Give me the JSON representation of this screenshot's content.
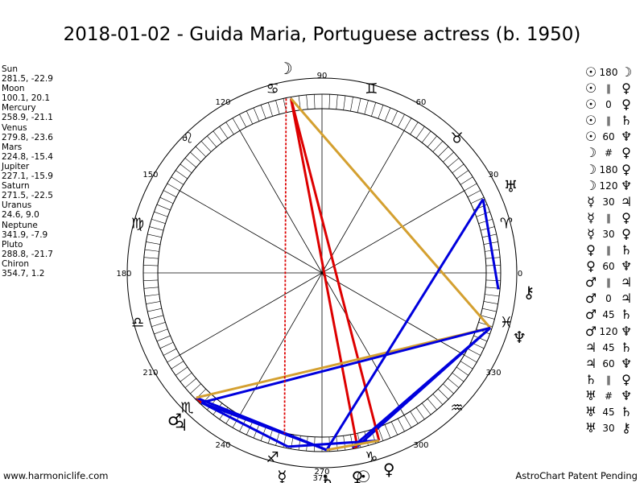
{
  "title": "2018-01-02 - Guida Maria, Portuguese actress (b. 1950)",
  "positions": [
    {
      "name": "Sun",
      "value": "281.5, -22.9"
    },
    {
      "name": "Moon",
      "value": "100.1, 20.1"
    },
    {
      "name": "Mercury",
      "value": "258.9, -21.1"
    },
    {
      "name": "Venus",
      "value": "279.8, -23.6"
    },
    {
      "name": "Mars",
      "value": "224.8, -15.4"
    },
    {
      "name": "Jupiter",
      "value": "227.1, -15.9"
    },
    {
      "name": "Saturn",
      "value": "271.5, -22.5"
    },
    {
      "name": "Uranus",
      "value": "24.6, 9.0"
    },
    {
      "name": "Neptune",
      "value": "341.9, -7.9"
    },
    {
      "name": "Pluto",
      "value": "288.8, -21.7"
    },
    {
      "name": "Chiron",
      "value": "354.7, 1.2"
    }
  ],
  "aspects": [
    {
      "p1": "☉",
      "aspect": "180",
      "p2": "☽"
    },
    {
      "p1": "☉",
      "aspect": "∥",
      "p2": "♀"
    },
    {
      "p1": "☉",
      "aspect": "0",
      "p2": "♀"
    },
    {
      "p1": "☉",
      "aspect": "∥",
      "p2": "♄"
    },
    {
      "p1": "☉",
      "aspect": "60",
      "p2": "♆"
    },
    {
      "p1": "☽",
      "aspect": "#",
      "p2": "♀"
    },
    {
      "p1": "☽",
      "aspect": "180",
      "p2": "♀"
    },
    {
      "p1": "☽",
      "aspect": "120",
      "p2": "♆"
    },
    {
      "p1": "☿",
      "aspect": "30",
      "p2": "♃"
    },
    {
      "p1": "☿",
      "aspect": "∥",
      "p2": "♀"
    },
    {
      "p1": "☿",
      "aspect": "30",
      "p2": "♀"
    },
    {
      "p1": "♀",
      "aspect": "∥",
      "p2": "♄"
    },
    {
      "p1": "♀",
      "aspect": "60",
      "p2": "♆"
    },
    {
      "p1": "♂",
      "aspect": "∥",
      "p2": "♃"
    },
    {
      "p1": "♂",
      "aspect": "0",
      "p2": "♃"
    },
    {
      "p1": "♂",
      "aspect": "45",
      "p2": "♄"
    },
    {
      "p1": "♂",
      "aspect": "120",
      "p2": "♆"
    },
    {
      "p1": "♃",
      "aspect": "45",
      "p2": "♄"
    },
    {
      "p1": "♃",
      "aspect": "60",
      "p2": "♆"
    },
    {
      "p1": "♄",
      "aspect": "∥",
      "p2": "♀"
    },
    {
      "p1": "♅",
      "aspect": "#",
      "p2": "♆"
    },
    {
      "p1": "♅",
      "aspect": "45",
      "p2": "♄"
    },
    {
      "p1": "♅",
      "aspect": "30",
      "p2": "⚷"
    }
  ],
  "wheel": {
    "degree_labels": [
      "0",
      "30",
      "60",
      "90",
      "120",
      "150",
      "180",
      "210",
      "240",
      "270",
      "300",
      "330"
    ],
    "bottom_label": "375",
    "signs": [
      "♈",
      "♉",
      "♊",
      "♋",
      "♌",
      "♍",
      "♎",
      "♏",
      "♐",
      "♑",
      "♒",
      "♓"
    ],
    "planets": [
      {
        "name": "Sun",
        "glyph": "☉",
        "lon": 281.5
      },
      {
        "name": "Moon",
        "glyph": "☽",
        "lon": 100.1
      },
      {
        "name": "Mercury",
        "glyph": "☿",
        "lon": 258.9
      },
      {
        "name": "Venus",
        "glyph": "♀",
        "lon": 279.8
      },
      {
        "name": "Mars",
        "glyph": "♂",
        "lon": 224.8
      },
      {
        "name": "Jupiter",
        "glyph": "♃",
        "lon": 227.1
      },
      {
        "name": "Saturn",
        "glyph": "♄",
        "lon": 271.5
      },
      {
        "name": "Uranus",
        "glyph": "♅",
        "lon": 24.6
      },
      {
        "name": "Neptune",
        "glyph": "♆",
        "lon": 341.9
      },
      {
        "name": "Pluto",
        "glyph": "♀",
        "lon": 288.8
      },
      {
        "name": "Chiron",
        "glyph": "⚷",
        "lon": 354.7
      }
    ],
    "aspect_lines": [
      {
        "a": "Sun",
        "b": "Moon",
        "color": "#dd0000"
      },
      {
        "a": "Sun",
        "b": "Venus",
        "color": "#dd0000"
      },
      {
        "a": "Sun",
        "b": "Neptune",
        "color": "#0000dd"
      },
      {
        "a": "Moon",
        "b": "Pluto",
        "color": "#dd0000"
      },
      {
        "a": "Moon",
        "b": "Neptune",
        "color": "#d4a030"
      },
      {
        "a": "Mercury",
        "b": "Jupiter",
        "color": "#0000dd"
      },
      {
        "a": "Mercury",
        "b": "Pluto",
        "color": "#0000dd"
      },
      {
        "a": "Venus",
        "b": "Neptune",
        "color": "#0000dd"
      },
      {
        "a": "Mars",
        "b": "Jupiter",
        "color": "#dd0000"
      },
      {
        "a": "Mars",
        "b": "Saturn",
        "color": "#0000dd"
      },
      {
        "a": "Mars",
        "b": "Neptune",
        "color": "#d4a030"
      },
      {
        "a": "Jupiter",
        "b": "Saturn",
        "color": "#0000dd"
      },
      {
        "a": "Jupiter",
        "b": "Neptune",
        "color": "#0000dd"
      },
      {
        "a": "Uranus",
        "b": "Saturn",
        "color": "#0000dd"
      },
      {
        "a": "Uranus",
        "b": "Chiron",
        "color": "#0000dd"
      },
      {
        "a": "Saturn",
        "b": "Pluto",
        "color": "#d4a030"
      }
    ],
    "colors": {
      "red": "#dd0000",
      "blue": "#0000dd",
      "gold": "#d4a030"
    }
  },
  "footer": {
    "left": "www.harmoniclife.com",
    "right": "AstroChart Patent Pending"
  }
}
